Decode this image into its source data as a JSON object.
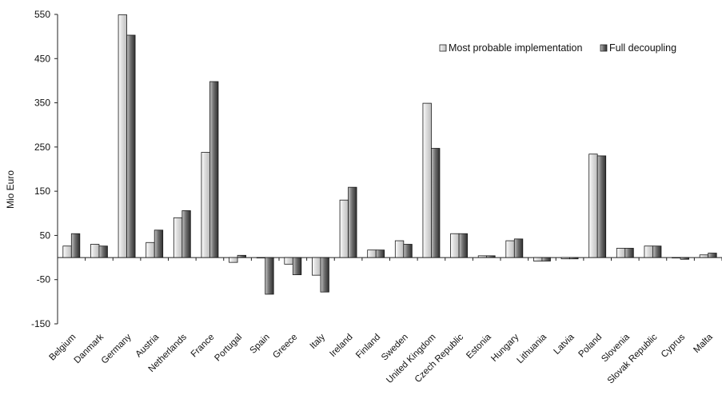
{
  "chart_data": {
    "type": "bar",
    "title": "",
    "xlabel": "",
    "ylabel": "Mio Euro",
    "ylim": [
      -150,
      550
    ],
    "yticks": [
      550,
      450,
      350,
      250,
      150,
      50,
      -50,
      -150
    ],
    "grid": false,
    "legend_position": "top-right",
    "categories": [
      "Belgium",
      "Danmark",
      "Germany",
      "Austria",
      "Netherlands",
      "France",
      "Portugal",
      "Spain",
      "Greece",
      "Italy",
      "Ireland",
      "Finland",
      "Sweden",
      "United Kingdom",
      "Czech Republic",
      "Estonia",
      "Hungary",
      "Lithuania",
      "Latvia",
      "Poland",
      "Slovenia",
      "Slovak Republic",
      "Cyprus",
      "Malta"
    ],
    "series": [
      {
        "name": "Most probable implementation",
        "color": "#d9d9d9",
        "values": [
          26,
          30,
          549,
          34,
          90,
          238,
          -11,
          0,
          -15,
          -40,
          130,
          17,
          38,
          349,
          54,
          4,
          38,
          -8,
          -3,
          234,
          21,
          26,
          0,
          6
        ]
      },
      {
        "name": "Full decoupling",
        "color": "#555555",
        "values": [
          54,
          26,
          503,
          62,
          106,
          398,
          5,
          -83,
          -39,
          -78,
          159,
          17,
          30,
          247,
          54,
          4,
          42,
          -8,
          -3,
          230,
          21,
          26,
          -4,
          10
        ]
      }
    ]
  }
}
